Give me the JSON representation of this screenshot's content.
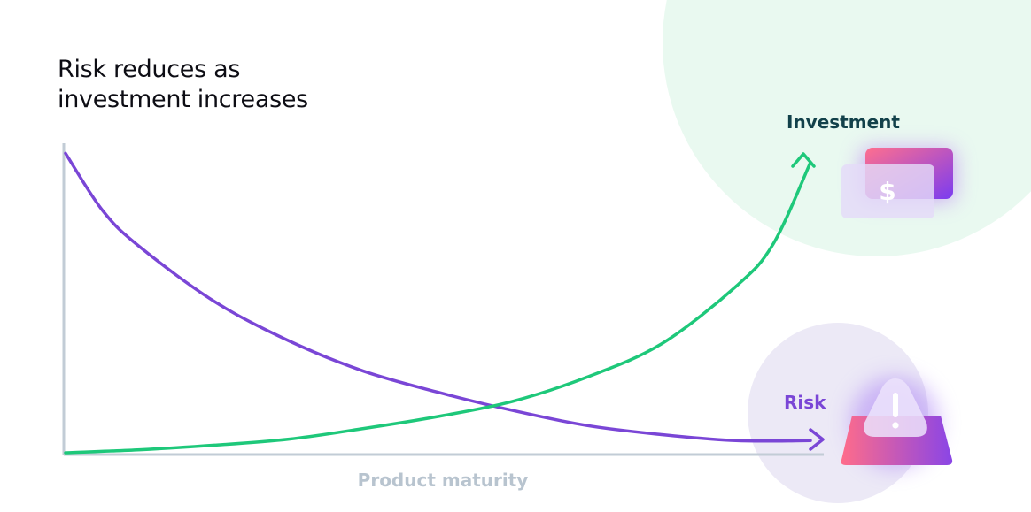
{
  "chart_data": {
    "type": "line",
    "title": "Risk reduces as investment increases",
    "xlabel": "Product maturity",
    "ylabel": "",
    "xlim": [
      0,
      1
    ],
    "ylim": [
      0,
      1
    ],
    "grid": false,
    "series": [
      {
        "name": "Investment",
        "color": "#1ec87a",
        "icon": "money-card-icon",
        "x": [
          0,
          0.1,
          0.2,
          0.3,
          0.4,
          0.5,
          0.6,
          0.7,
          0.8,
          0.9,
          0.95,
          1.0
        ],
        "values": [
          0,
          0.01,
          0.025,
          0.045,
          0.08,
          0.12,
          0.17,
          0.25,
          0.36,
          0.55,
          0.69,
          0.96
        ]
      },
      {
        "name": "Risk",
        "color": "#7a46d6",
        "icon": "warning-icon",
        "x": [
          0,
          0.05,
          0.1,
          0.2,
          0.3,
          0.4,
          0.5,
          0.6,
          0.7,
          0.8,
          0.9,
          1.0
        ],
        "values": [
          0.99,
          0.8,
          0.68,
          0.5,
          0.37,
          0.27,
          0.2,
          0.14,
          0.09,
          0.06,
          0.04,
          0.04
        ]
      }
    ]
  }
}
